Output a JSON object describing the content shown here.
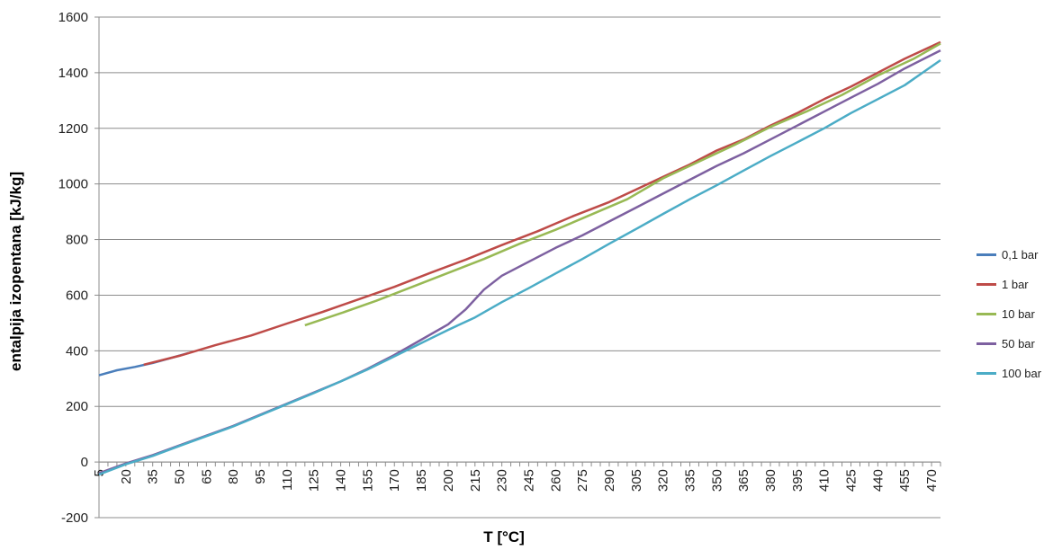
{
  "chart_data": {
    "type": "line",
    "title": "",
    "xlabel": "T  [°C]",
    "ylabel": "entalpija izopentana  [kJ/kg]",
    "ylim": [
      -200,
      1600
    ],
    "yticks": [
      -200,
      0,
      200,
      400,
      600,
      800,
      1000,
      1200,
      1400,
      1600
    ],
    "xlim": [
      5,
      475
    ],
    "xtick_labels": [
      "5",
      "20",
      "35",
      "50",
      "65",
      "80",
      "95",
      "110",
      "125",
      "140",
      "155",
      "170",
      "185",
      "200",
      "215",
      "230",
      "245",
      "260",
      "275",
      "290",
      "305",
      "320",
      "335",
      "350",
      "365",
      "380",
      "395",
      "410",
      "425",
      "440",
      "455",
      "470"
    ],
    "grid": "horizontal",
    "legend_position": "right",
    "series": [
      {
        "name": "0,1 bar",
        "color": "#4a7ebb",
        "points": [
          [
            5,
            312
          ],
          [
            15,
            330
          ],
          [
            25,
            342
          ],
          [
            35,
            356
          ],
          [
            45,
            374
          ],
          [
            55,
            392
          ]
        ]
      },
      {
        "name": "1 bar",
        "color": "#be4b48",
        "points": [
          [
            30,
            350
          ],
          [
            50,
            382
          ],
          [
            70,
            420
          ],
          [
            90,
            455
          ],
          [
            110,
            498
          ],
          [
            130,
            540
          ],
          [
            150,
            585
          ],
          [
            170,
            630
          ],
          [
            190,
            680
          ],
          [
            210,
            728
          ],
          [
            230,
            780
          ],
          [
            250,
            830
          ],
          [
            270,
            885
          ],
          [
            290,
            935
          ],
          [
            305,
            980
          ],
          [
            320,
            1025
          ],
          [
            335,
            1070
          ],
          [
            350,
            1120
          ],
          [
            365,
            1160
          ],
          [
            380,
            1210
          ],
          [
            395,
            1255
          ],
          [
            410,
            1305
          ],
          [
            425,
            1350
          ],
          [
            440,
            1400
          ],
          [
            455,
            1450
          ],
          [
            475,
            1510
          ]
        ]
      },
      {
        "name": "10 bar",
        "color": "#98b954",
        "points": [
          [
            120,
            492
          ],
          [
            140,
            535
          ],
          [
            160,
            580
          ],
          [
            180,
            630
          ],
          [
            200,
            680
          ],
          [
            220,
            730
          ],
          [
            240,
            785
          ],
          [
            260,
            835
          ],
          [
            280,
            890
          ],
          [
            300,
            945
          ],
          [
            320,
            1020
          ],
          [
            340,
            1080
          ],
          [
            360,
            1140
          ],
          [
            380,
            1205
          ],
          [
            400,
            1260
          ],
          [
            420,
            1320
          ],
          [
            440,
            1390
          ],
          [
            460,
            1450
          ],
          [
            475,
            1505
          ]
        ]
      },
      {
        "name": "50 bar",
        "color": "#7d60a0",
        "points": [
          [
            5,
            -40
          ],
          [
            20,
            -5
          ],
          [
            35,
            25
          ],
          [
            50,
            60
          ],
          [
            65,
            95
          ],
          [
            80,
            130
          ],
          [
            95,
            170
          ],
          [
            110,
            210
          ],
          [
            125,
            250
          ],
          [
            140,
            290
          ],
          [
            155,
            335
          ],
          [
            170,
            385
          ],
          [
            185,
            440
          ],
          [
            200,
            495
          ],
          [
            210,
            550
          ],
          [
            220,
            620
          ],
          [
            230,
            670
          ],
          [
            245,
            720
          ],
          [
            260,
            770
          ],
          [
            275,
            815
          ],
          [
            290,
            865
          ],
          [
            305,
            915
          ],
          [
            320,
            965
          ],
          [
            335,
            1015
          ],
          [
            350,
            1065
          ],
          [
            365,
            1110
          ],
          [
            380,
            1160
          ],
          [
            395,
            1210
          ],
          [
            410,
            1260
          ],
          [
            425,
            1310
          ],
          [
            440,
            1360
          ],
          [
            455,
            1415
          ],
          [
            475,
            1480
          ]
        ]
      },
      {
        "name": "100 bar",
        "color": "#4bacc6",
        "points": [
          [
            5,
            -45
          ],
          [
            20,
            -8
          ],
          [
            35,
            22
          ],
          [
            50,
            58
          ],
          [
            65,
            93
          ],
          [
            80,
            128
          ],
          [
            95,
            168
          ],
          [
            110,
            208
          ],
          [
            125,
            248
          ],
          [
            140,
            290
          ],
          [
            155,
            333
          ],
          [
            170,
            380
          ],
          [
            185,
            428
          ],
          [
            200,
            475
          ],
          [
            215,
            520
          ],
          [
            230,
            575
          ],
          [
            245,
            625
          ],
          [
            260,
            678
          ],
          [
            275,
            730
          ],
          [
            290,
            785
          ],
          [
            305,
            838
          ],
          [
            320,
            892
          ],
          [
            335,
            945
          ],
          [
            350,
            995
          ],
          [
            365,
            1048
          ],
          [
            380,
            1100
          ],
          [
            395,
            1150
          ],
          [
            410,
            1200
          ],
          [
            425,
            1255
          ],
          [
            440,
            1305
          ],
          [
            455,
            1355
          ],
          [
            475,
            1445
          ]
        ]
      }
    ]
  }
}
